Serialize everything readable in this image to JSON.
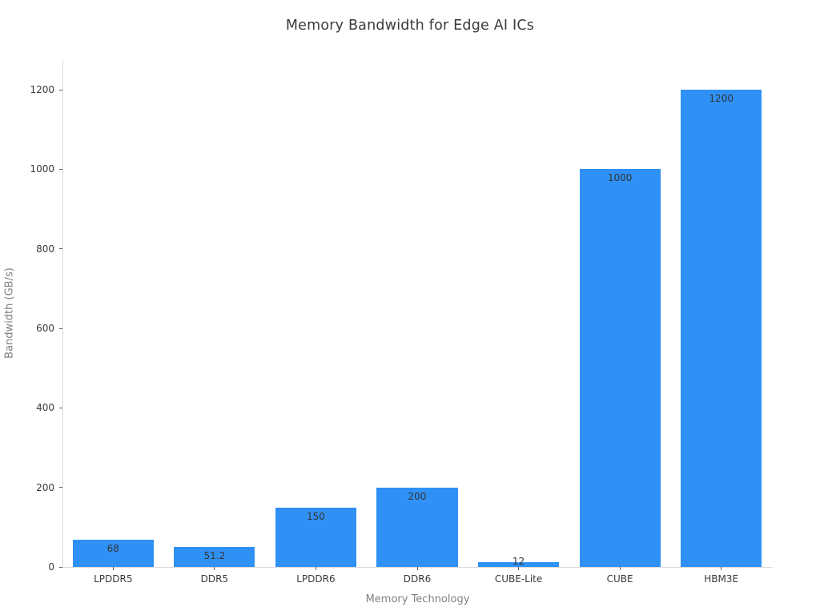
{
  "chart_data": {
    "type": "bar",
    "title": "Memory Bandwidth for Edge AI ICs",
    "xlabel": "Memory Technology",
    "ylabel": "Bandwidth (GB/s)",
    "categories": [
      "LPDDR5",
      "DDR5",
      "LPDDR6",
      "DDR6",
      "CUBE-Lite",
      "CUBE",
      "HBM3E"
    ],
    "values": [
      68,
      51.2,
      150,
      200,
      12,
      1000,
      1200
    ],
    "bar_labels": [
      "68",
      "51.2",
      "150",
      "200",
      "12",
      "1000",
      "1200"
    ],
    "yticks": [
      0,
      200,
      400,
      600,
      800,
      1000,
      1200
    ],
    "ylim": [
      0,
      1274
    ],
    "grid": false,
    "legend": "none",
    "bar_color": "#2f91f5",
    "colors": {
      "bar": "#2f91f5",
      "title_text": "#3a3a3a",
      "tick_text": "#3a3a3a",
      "axis_title_text": "#808080",
      "value_label_text": "#333333",
      "spine": "#d9d9d9",
      "tick_mark": "#606060",
      "background": "#ffffff"
    }
  }
}
